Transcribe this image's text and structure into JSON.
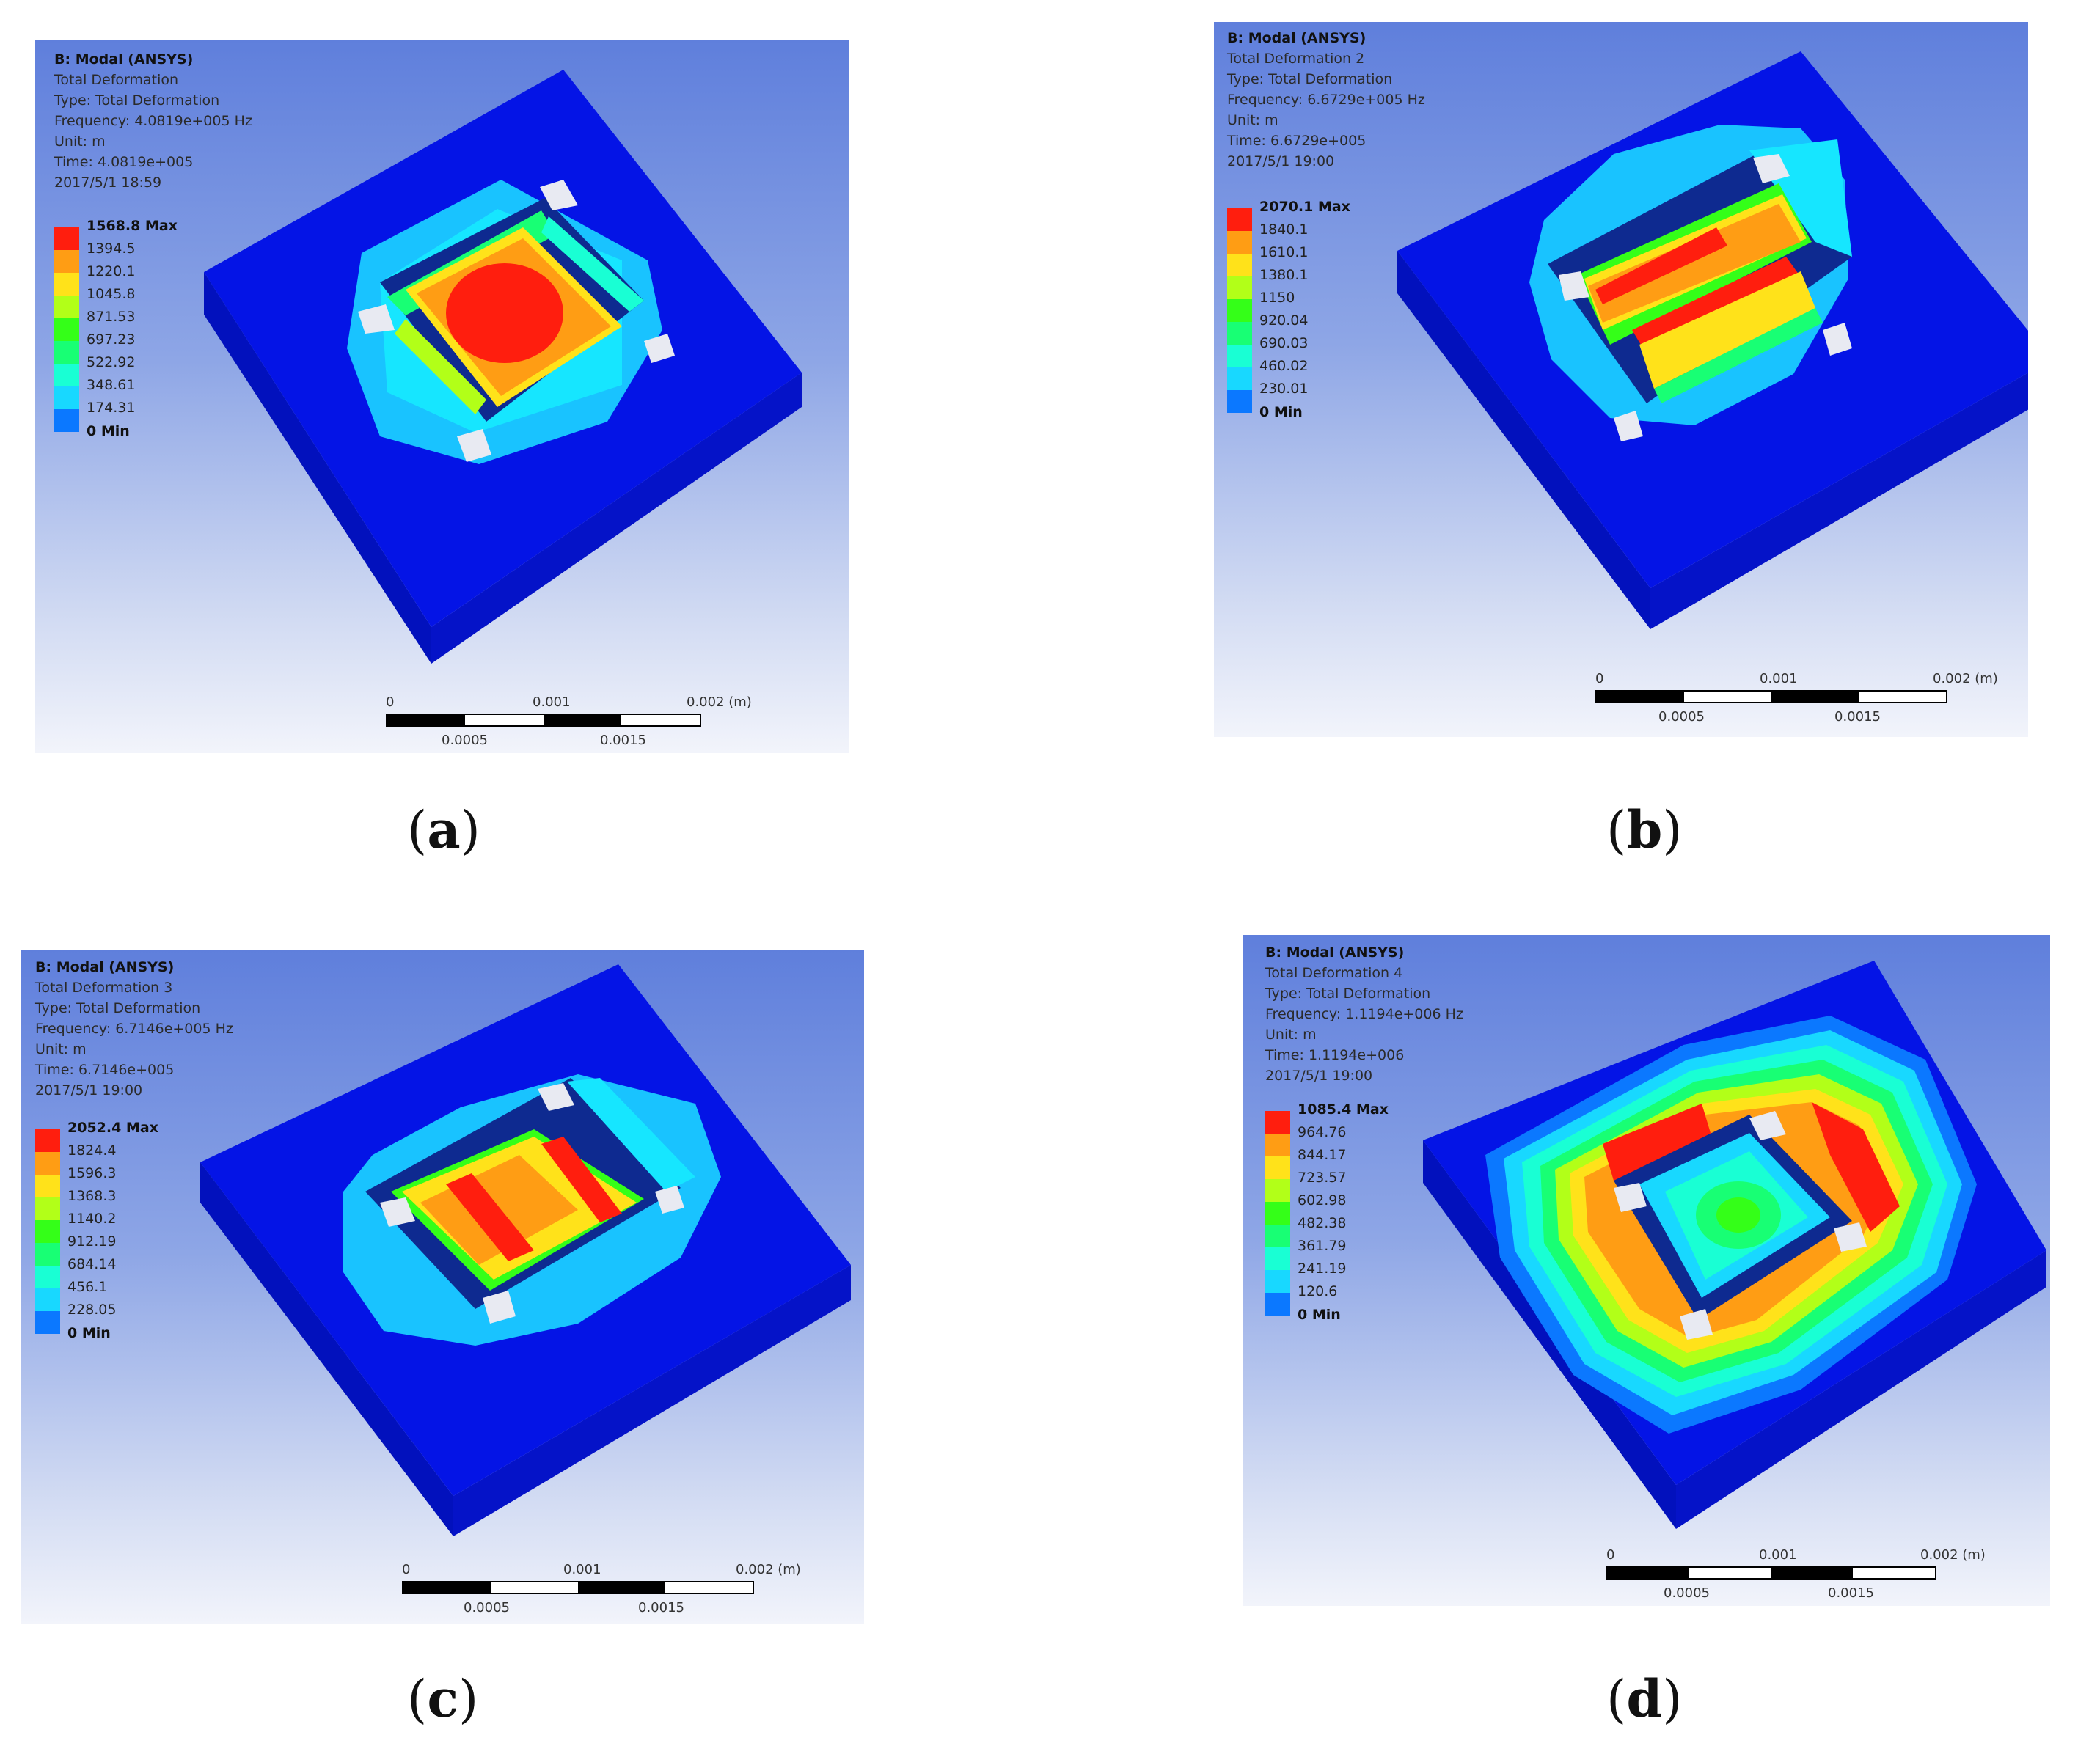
{
  "colors": {
    "contour": [
      "#0000ff",
      "#0b78ff",
      "#18d8ff",
      "#19ffd4",
      "#18ff74",
      "#34ff18",
      "#b2ff18",
      "#ffe21a",
      "#ff9d14",
      "#ff1e0e"
    ],
    "plate_top": "#0414e6",
    "plate_left": "#0211bd",
    "plate_right": "#0513c8"
  },
  "panels": [
    {
      "id": "a",
      "header": [
        "B: Modal (ANSYS)",
        "Total Deformation",
        "Type: Total Deformation",
        "Frequency: 4.0819e+005 Hz",
        "Unit: m",
        "Time: 4.0819e+005",
        "2017/5/1 18:59"
      ],
      "legend": [
        "1568.8 Max",
        "1394.5",
        "1220.1",
        "1045.8",
        "871.53",
        "697.23",
        "522.92",
        "348.61",
        "174.31",
        "0 Min"
      ],
      "scale": {
        "ticks_top": [
          "0",
          "0.001",
          "0.002 (m)"
        ],
        "ticks_bottom": [
          "0.0005",
          "0.0015"
        ]
      },
      "caption": "a"
    },
    {
      "id": "b",
      "header": [
        "B: Modal (ANSYS)",
        "Total Deformation 2",
        "Type: Total Deformation",
        "Frequency: 6.6729e+005 Hz",
        "Unit: m",
        "Time: 6.6729e+005",
        "2017/5/1 19:00"
      ],
      "legend": [
        "2070.1 Max",
        "1840.1",
        "1610.1",
        "1380.1",
        "1150",
        "920.04",
        "690.03",
        "460.02",
        "230.01",
        "0 Min"
      ],
      "scale": {
        "ticks_top": [
          "0",
          "0.001",
          "0.002 (m)"
        ],
        "ticks_bottom": [
          "0.0005",
          "0.0015"
        ]
      },
      "caption": "b"
    },
    {
      "id": "c",
      "header": [
        "B: Modal (ANSYS)",
        "Total Deformation 3",
        "Type: Total Deformation",
        "Frequency: 6.7146e+005 Hz",
        "Unit: m",
        "Time: 6.7146e+005",
        "2017/5/1 19:00"
      ],
      "legend": [
        "2052.4 Max",
        "1824.4",
        "1596.3",
        "1368.3",
        "1140.2",
        "912.19",
        "684.14",
        "456.1",
        "228.05",
        "0 Min"
      ],
      "scale": {
        "ticks_top": [
          "0",
          "0.001",
          "0.002 (m)"
        ],
        "ticks_bottom": [
          "0.0005",
          "0.0015"
        ]
      },
      "caption": "c"
    },
    {
      "id": "d",
      "header": [
        "B: Modal (ANSYS)",
        "Total Deformation 4",
        "Type: Total Deformation",
        "Frequency: 1.1194e+006 Hz",
        "Unit: m",
        "Time: 1.1194e+006",
        "2017/5/1 19:00"
      ],
      "legend": [
        "1085.4 Max",
        "964.76",
        "844.17",
        "723.57",
        "602.98",
        "482.38",
        "361.79",
        "241.19",
        "120.6",
        "0 Min"
      ],
      "scale": {
        "ticks_top": [
          "0",
          "0.001",
          "0.002 (m)"
        ],
        "ticks_bottom": [
          "0.0005",
          "0.0015"
        ]
      },
      "caption": "d"
    }
  ]
}
